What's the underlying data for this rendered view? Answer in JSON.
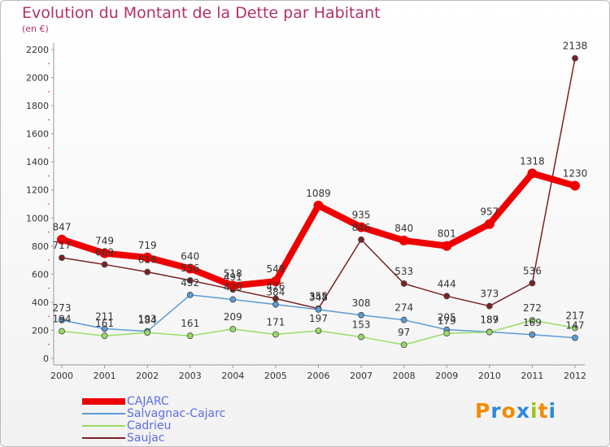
{
  "title": "Evolution du Montant de la Dette par Habitant",
  "subtitle": "(en €)",
  "logo": {
    "letters": [
      "P",
      "r",
      "o",
      "x",
      "i",
      "t",
      "i"
    ],
    "colors": [
      "#f28c00",
      "#2e8bd8",
      "#f28c00",
      "#2e8bd8",
      "#9ac31c",
      "#f28c00",
      "#2e8bd8"
    ]
  },
  "chart_data": {
    "type": "line",
    "x": [
      "2000",
      "2001",
      "2002",
      "2003",
      "2004",
      "2005",
      "2006",
      "2007",
      "2008",
      "2009",
      "2010",
      "2011",
      "2012"
    ],
    "ylim": [
      0,
      2200
    ],
    "yticks": [
      "0",
      "200",
      "400",
      "600",
      "800",
      "1000",
      "1200",
      "1400",
      "1600",
      "1800",
      "2000",
      "2200"
    ],
    "grid": false,
    "legend_position": "bottom-left",
    "series": [
      {
        "name": "CAJARC",
        "color": "#ee0000",
        "values": [
          847,
          749,
          719,
          640,
          518,
          549,
          1089,
          935,
          840,
          801,
          957,
          1318,
          1230
        ]
      },
      {
        "name": "Salvagnac-Cajarc",
        "color": "#5b9bd5",
        "values": [
          273,
          211,
          193,
          452,
          420,
          384,
          348,
          308,
          274,
          205,
          189,
          169,
          147
        ]
      },
      {
        "name": "Cadrieu",
        "color": "#99dd66",
        "values": [
          194,
          161,
          184,
          161,
          209,
          171,
          197,
          153,
          97,
          179,
          187,
          272,
          217
        ]
      },
      {
        "name": "Saujac",
        "color": "#7a2222",
        "values": [
          717,
          669,
          616,
          556,
          491,
          426,
          355,
          846,
          533,
          444,
          373,
          536,
          2138
        ]
      }
    ]
  }
}
